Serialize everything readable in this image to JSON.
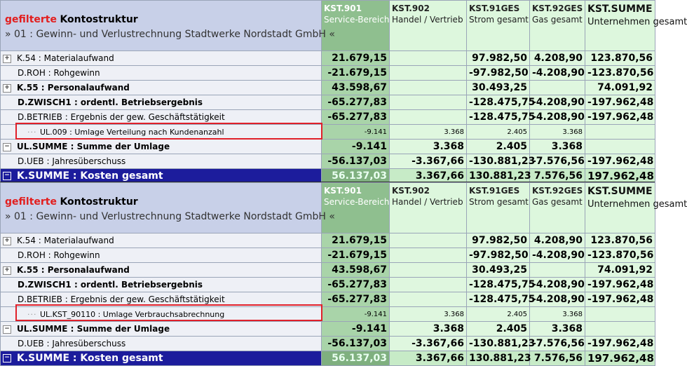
{
  "header": {
    "filtered": "gefilterte",
    "title_rest": "Kontostruktur",
    "subtitle": "» 01 : Gewinn- und Verlustrechnung Stadtwerke Nordstadt GmbH «"
  },
  "columns": [
    {
      "code": "KST.901",
      "desc": "Service-Bereich"
    },
    {
      "code": "KST.902",
      "desc": "Handel / Vertrieb"
    },
    {
      "code": "KST.91GES",
      "desc": "Strom gesamt"
    },
    {
      "code": "KST.92GES",
      "desc": "Gas gesamt"
    },
    {
      "code": "KST.SUMME",
      "desc": "Unternehmen gesamt"
    }
  ],
  "panels": [
    {
      "rows": [
        {
          "label": "K.54 : Materialaufwand",
          "expand": "+",
          "values": [
            "21.679,15",
            "",
            "97.982,50",
            "4.208,90",
            "123.870,56"
          ]
        },
        {
          "label": "D.ROH : Rohgewinn",
          "values": [
            "-21.679,15",
            "",
            "-97.982,50",
            "-4.208,90",
            "-123.870,56"
          ]
        },
        {
          "label": "K.55 : Personalaufwand",
          "expand": "+",
          "values": [
            "43.598,67",
            "",
            "30.493,25",
            "",
            "74.091,92"
          ]
        },
        {
          "label": "D.ZWISCH1 : ordentl. Betriebsergebnis",
          "values": [
            "-65.277,83",
            "",
            "-128.475,75",
            "-4.208,90",
            "-197.962,48"
          ]
        },
        {
          "label": "D.BETRIEB : Ergebnis der gew. Geschäftstätigkeit",
          "values": [
            "-65.277,83",
            "",
            "-128.475,75",
            "-4.208,90",
            "-197.962,48"
          ]
        },
        {
          "label": "UL.009 : Umlage Verteilung nach Kundenanzahl",
          "values": [
            "-9.141",
            "3.368",
            "2.405",
            "3.368",
            ""
          ]
        },
        {
          "label": "UL.SUMME : Summe der Umlage",
          "expand": "−",
          "values": [
            "-9.141",
            "3.368",
            "2.405",
            "3.368",
            ""
          ]
        },
        {
          "label": "D.UEB : Jahresüberschuss",
          "values": [
            "-56.137,03",
            "-3.367,66",
            "-130.881,23",
            "-7.576,56",
            "-197.962,48"
          ]
        },
        {
          "label": "K.SUMME : Kosten gesamt",
          "expand": "−",
          "values": [
            "56.137,03",
            "3.367,66",
            "130.881,23",
            "7.576,56",
            "197.962,48"
          ]
        }
      ]
    },
    {
      "rows": [
        {
          "label": "K.54 : Materialaufwand",
          "expand": "+",
          "values": [
            "21.679,15",
            "",
            "97.982,50",
            "4.208,90",
            "123.870,56"
          ]
        },
        {
          "label": "D.ROH : Rohgewinn",
          "values": [
            "-21.679,15",
            "",
            "-97.982,50",
            "-4.208,90",
            "-123.870,56"
          ]
        },
        {
          "label": "K.55 : Personalaufwand",
          "expand": "+",
          "values": [
            "43.598,67",
            "",
            "30.493,25",
            "",
            "74.091,92"
          ]
        },
        {
          "label": "D.ZWISCH1 : ordentl. Betriebsergebnis",
          "values": [
            "-65.277,83",
            "",
            "-128.475,75",
            "-4.208,90",
            "-197.962,48"
          ]
        },
        {
          "label": "D.BETRIEB : Ergebnis der gew. Geschäftstätigkeit",
          "values": [
            "-65.277,83",
            "",
            "-128.475,75",
            "-4.208,90",
            "-197.962,48"
          ]
        },
        {
          "label": "UL.KST_90110 : Umlage Verbrauchsabrechnung",
          "values": [
            "-9.141",
            "3.368",
            "2.405",
            "3.368",
            ""
          ]
        },
        {
          "label": "UL.SUMME : Summe der Umlage",
          "expand": "−",
          "values": [
            "-9.141",
            "3.368",
            "2.405",
            "3.368",
            ""
          ]
        },
        {
          "label": "D.UEB : Jahresüberschuss",
          "values": [
            "-56.137,03",
            "-3.367,66",
            "-130.881,23",
            "-7.576,56",
            "-197.962,48"
          ]
        },
        {
          "label": "K.SUMME : Kosten gesamt",
          "expand": "−",
          "values": [
            "56.137,03",
            "3.367,66",
            "130.881,23",
            "7.576,56",
            "197.962,48"
          ]
        }
      ]
    }
  ],
  "colors": {
    "highlight": "#e0202a",
    "total_row": "#1c1c9c",
    "service_col": "#a9d4a9",
    "value_cols": "#dff7df",
    "label_col": "#eef0f6"
  }
}
